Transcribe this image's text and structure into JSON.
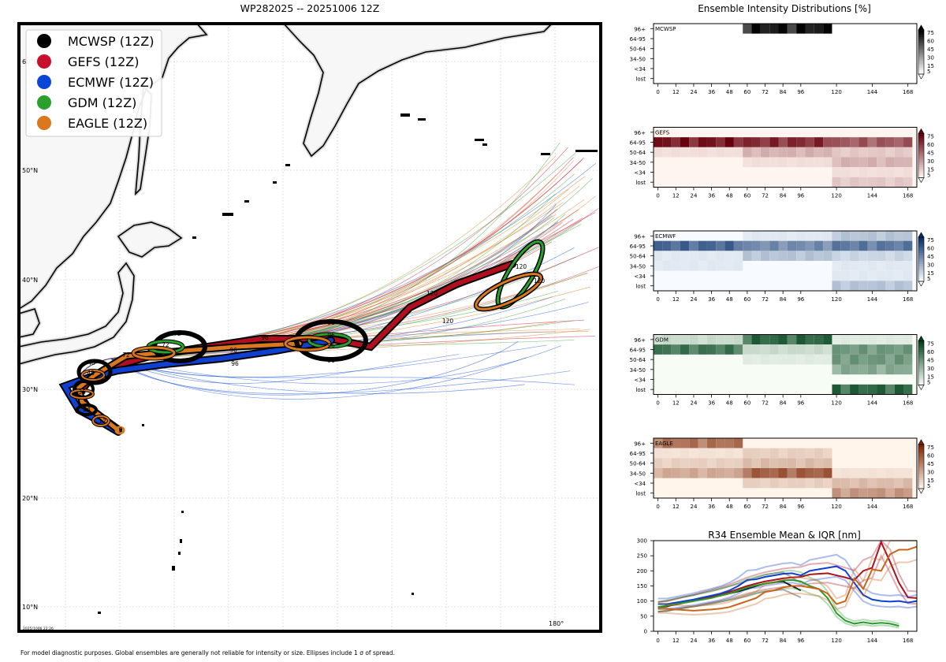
{
  "map": {
    "title": "WP282025 -- 20251006 12Z",
    "lat_labels": [
      "60°N",
      "50°N",
      "40°N",
      "30°N",
      "20°N",
      "10°N"
    ],
    "lon_label": "180°",
    "timestamp": "2025/1006 22:26",
    "footer": "For model diagnostic purposes. Global ensembles are generally not reliable for intensity or size. Ellipses include 1 σ of spread.",
    "legend": [
      {
        "label": "MCWSP (12Z)",
        "color": "#000000"
      },
      {
        "label": "GEFS (12Z)",
        "color": "#c8102e"
      },
      {
        "label": "ECMWF (12Z)",
        "color": "#0a45d8"
      },
      {
        "label": "GDM (12Z)",
        "color": "#2ca02c"
      },
      {
        "label": "EAGLE (12Z)",
        "color": "#d9781e"
      }
    ],
    "forecast_hour_labels": [
      "0",
      "12",
      "24",
      "36",
      "48",
      "72",
      "96",
      "120"
    ]
  },
  "intensity": {
    "title": "Ensemble Intensity Distributions [%]",
    "rows": [
      "96+",
      "64-95",
      "50-64",
      "34-50",
      "<34",
      "lost"
    ],
    "xticks": [
      "0",
      "12",
      "24",
      "36",
      "48",
      "60",
      "72",
      "84",
      "96",
      "120",
      "144",
      "168"
    ],
    "cbar_ticks": [
      "75",
      "60",
      "45",
      "30",
      "15",
      "5"
    ],
    "panels": [
      {
        "name": "MCWSP",
        "c0": "#ffffff",
        "c1": "#000000"
      },
      {
        "name": "GEFS",
        "c0": "#fff5f0",
        "c1": "#67000d"
      },
      {
        "name": "ECMWF",
        "c0": "#f7fbff",
        "c1": "#08306b"
      },
      {
        "name": "GDM",
        "c0": "#f7fcf5",
        "c1": "#00441b"
      },
      {
        "name": "EAGLE",
        "c0": "#fff5eb",
        "c1": "#7f2704"
      }
    ]
  },
  "chart_data": {
    "type": "line",
    "title": "R34 Ensemble Mean & IQR [nm]",
    "xticks": [
      "0",
      "12",
      "24",
      "36",
      "48",
      "60",
      "72",
      "84",
      "96",
      "120",
      "144",
      "168"
    ],
    "yticks": [
      "0",
      "50",
      "100",
      "150",
      "200",
      "250",
      "300"
    ],
    "ylim": [
      0,
      300
    ],
    "xlim": [
      -3,
      174
    ],
    "series": [
      {
        "name": "MCWSP",
        "color": "#111111",
        "x": [
          0,
          6,
          12,
          18,
          24,
          30,
          36,
          42,
          48,
          54,
          60,
          66,
          72,
          78,
          84,
          90,
          96
        ],
        "values": [
          80,
          82,
          90,
          95,
          100,
          106,
          112,
          118,
          125,
          132,
          140,
          150,
          158,
          162,
          165,
          150,
          135
        ]
      },
      {
        "name": "GEFS",
        "color": "#b0101e",
        "x": [
          0,
          6,
          12,
          18,
          24,
          30,
          36,
          42,
          48,
          54,
          60,
          66,
          72,
          78,
          84,
          90,
          96,
          102,
          108,
          114,
          120,
          126,
          132,
          138,
          144,
          150,
          156,
          162,
          168,
          174
        ],
        "values": [
          80,
          84,
          88,
          95,
          100,
          108,
          115,
          122,
          130,
          140,
          150,
          158,
          165,
          170,
          175,
          178,
          180,
          188,
          190,
          192,
          185,
          178,
          170,
          200,
          210,
          295,
          230,
          160,
          112,
          110
        ]
      },
      {
        "name": "ECMWF",
        "color": "#1040d0",
        "x": [
          0,
          6,
          12,
          18,
          24,
          30,
          36,
          42,
          48,
          54,
          60,
          66,
          72,
          78,
          84,
          90,
          96,
          102,
          108,
          114,
          120,
          126,
          132,
          138,
          144,
          150,
          156,
          162,
          168,
          174
        ],
        "values": [
          90,
          90,
          95,
          100,
          105,
          112,
          118,
          125,
          135,
          150,
          170,
          172,
          180,
          185,
          190,
          192,
          185,
          200,
          205,
          210,
          215,
          200,
          160,
          120,
          105,
          100,
          98,
          100,
          95,
          100
        ]
      },
      {
        "name": "GDM",
        "color": "#2a9a2a",
        "x": [
          0,
          6,
          12,
          18,
          24,
          30,
          36,
          42,
          48,
          54,
          60,
          66,
          72,
          78,
          84,
          90,
          96,
          102,
          108,
          114,
          120,
          126,
          132,
          138,
          144,
          150,
          156,
          162
        ],
        "values": [
          80,
          85,
          90,
          95,
          100,
          105,
          110,
          118,
          125,
          135,
          145,
          152,
          158,
          162,
          168,
          170,
          165,
          150,
          140,
          110,
          60,
          35,
          25,
          30,
          25,
          28,
          25,
          18
        ]
      },
      {
        "name": "EAGLE",
        "color": "#c9641a",
        "x": [
          0,
          6,
          12,
          18,
          24,
          30,
          36,
          42,
          48,
          54,
          60,
          66,
          72,
          78,
          84,
          90,
          96,
          102,
          108,
          114,
          120,
          126,
          132,
          138,
          144,
          150,
          156,
          162,
          168,
          174
        ],
        "values": [
          75,
          75,
          72,
          70,
          68,
          70,
          72,
          75,
          80,
          90,
          100,
          110,
          130,
          135,
          145,
          150,
          150,
          145,
          140,
          125,
          90,
          100,
          175,
          140,
          205,
          200,
          255,
          270,
          270,
          280
        ]
      }
    ]
  }
}
